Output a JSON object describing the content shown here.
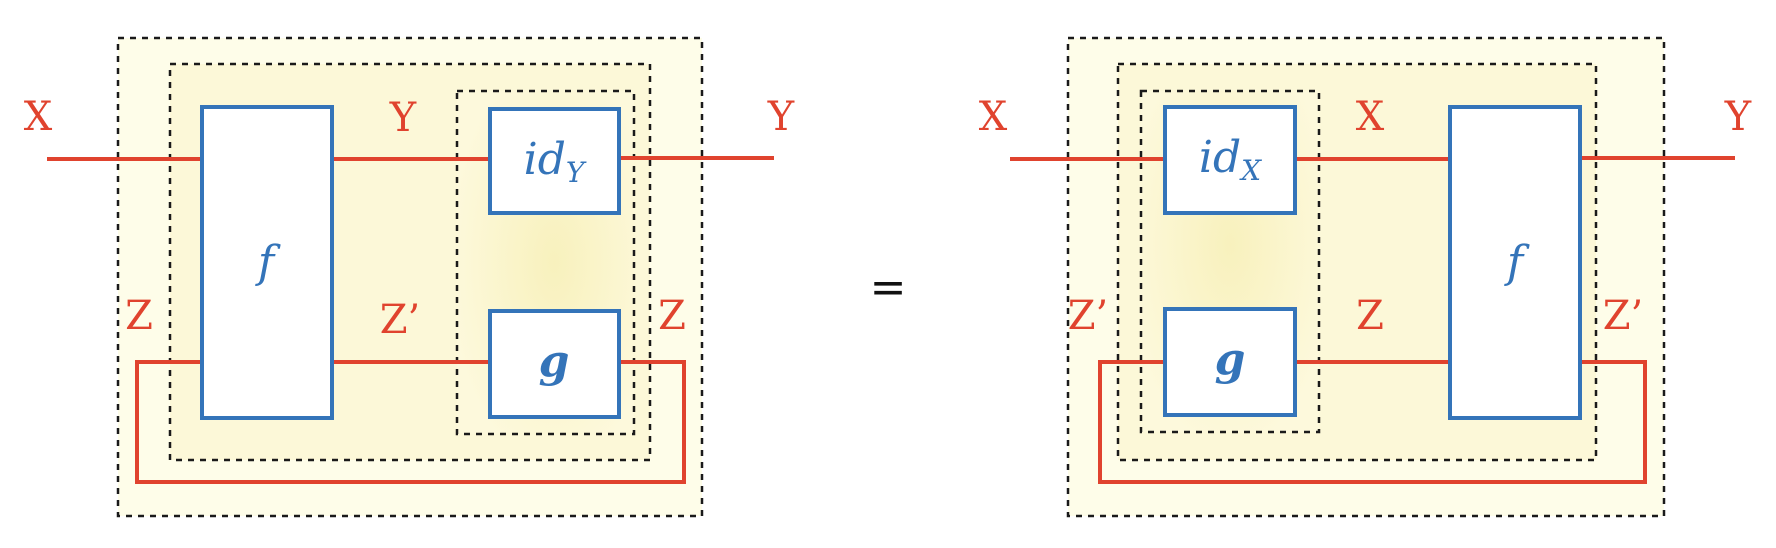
{
  "colors": {
    "wire": "#e0432e",
    "box": "#3474b9",
    "box_fill": "#ffffff",
    "frame": "#1a1a1a",
    "fill_outer": "#fefde9",
    "fill_mid": "#fcf8d6",
    "fill_inner": "#f8f1bd",
    "text": "#111111"
  },
  "equals": "=",
  "left": {
    "labels": {
      "x_in": "X",
      "y_mid": "Y",
      "y_out": "Y",
      "z_left": "Z",
      "z_prime": "Z’",
      "z_right": "Z"
    },
    "boxes": {
      "f": "f",
      "id_main": "id",
      "id_sub": "Y",
      "g": "g"
    }
  },
  "right": {
    "labels": {
      "x_in": "X",
      "x_mid": "X",
      "y_out": "Y",
      "z_prime_left": "Z’",
      "z_mid": "Z",
      "z_prime_right": "Z’"
    },
    "boxes": {
      "f": "f",
      "id_main": "id",
      "id_sub": "X",
      "g": "g"
    }
  }
}
